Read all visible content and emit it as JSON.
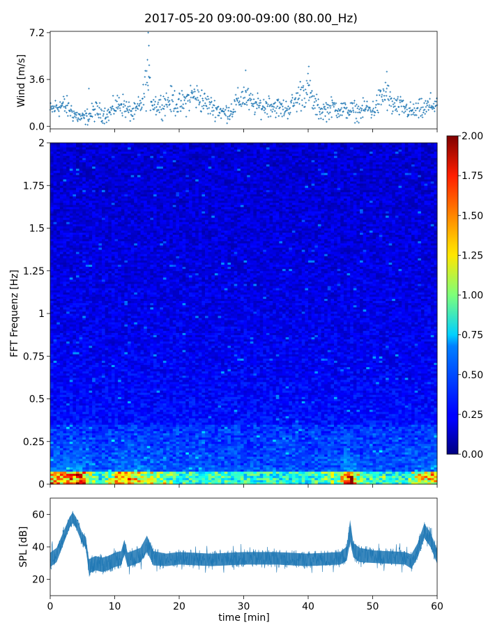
{
  "title": "2017-05-20 09:00-09:00 (80.00_Hz)",
  "chart_data": [
    {
      "type": "scatter",
      "ylabel": "Wind [m/s]",
      "xlabel": "",
      "xlim": [
        0,
        60
      ],
      "ylim": [
        -0.2,
        7.3
      ],
      "yticks": [
        0.0,
        3.6,
        7.2
      ],
      "ytick_labels": [
        "0.0",
        "3.6",
        "7.2"
      ],
      "xticks": [
        0,
        10,
        20,
        30,
        40,
        50,
        60
      ],
      "marker": "+",
      "color": "#1f77b4",
      "envelope": {
        "x": [
          0,
          1,
          2,
          3,
          4,
          5,
          6,
          7,
          8,
          9,
          10,
          11,
          12,
          13,
          14,
          14.5,
          15,
          15.5,
          16,
          17,
          18,
          19,
          20,
          21,
          22,
          23,
          24,
          25,
          26,
          27,
          28,
          29,
          30,
          31,
          32,
          33,
          34,
          35,
          36,
          37,
          38,
          39,
          40,
          41,
          42,
          43,
          44,
          45,
          46,
          47,
          48,
          49,
          50,
          51,
          52,
          53,
          54,
          55,
          56,
          57,
          58,
          59,
          60
        ],
        "y": [
          1.2,
          1.5,
          1.6,
          1.3,
          0.8,
          0.6,
          0.8,
          1.2,
          1.0,
          0.9,
          1.5,
          1.8,
          1.2,
          1.0,
          1.6,
          2.2,
          3.8,
          2.6,
          1.8,
          1.6,
          1.9,
          2.0,
          1.6,
          1.9,
          2.4,
          2.2,
          1.8,
          1.5,
          1.3,
          1.0,
          1.2,
          1.8,
          2.4,
          1.8,
          1.6,
          1.5,
          1.7,
          1.5,
          1.3,
          1.4,
          1.9,
          2.6,
          2.8,
          1.6,
          1.2,
          1.3,
          1.5,
          1.3,
          1.2,
          1.2,
          1.1,
          1.4,
          1.2,
          1.9,
          2.6,
          1.6,
          1.5,
          1.4,
          1.1,
          1.2,
          1.3,
          1.6,
          1.8
        ],
        "spread": [
          0.5,
          0.6,
          0.7,
          0.6,
          0.5,
          0.4,
          0.5,
          0.6,
          0.5,
          0.5,
          0.6,
          0.7,
          0.6,
          0.5,
          0.7,
          0.9,
          1.6,
          1.0,
          0.8,
          0.7,
          0.7,
          0.8,
          0.7,
          0.8,
          0.9,
          0.8,
          0.7,
          0.6,
          0.6,
          0.5,
          0.6,
          0.7,
          0.9,
          0.7,
          0.6,
          0.6,
          0.7,
          0.6,
          0.6,
          0.6,
          0.7,
          1.0,
          1.0,
          0.7,
          0.6,
          0.6,
          0.6,
          0.6,
          0.5,
          0.6,
          0.5,
          0.6,
          0.6,
          0.8,
          1.0,
          0.7,
          0.6,
          0.6,
          0.5,
          0.6,
          0.6,
          0.7,
          0.7
        ]
      },
      "peaks": [
        {
          "x": 15.2,
          "y": 7.2
        },
        {
          "x": 15.3,
          "y": 6.2
        },
        {
          "x": 40.1,
          "y": 4.6
        },
        {
          "x": 52.2,
          "y": 4.2
        },
        {
          "x": 30.3,
          "y": 4.3
        },
        {
          "x": 6.0,
          "y": 2.9
        }
      ]
    },
    {
      "type": "heatmap",
      "ylabel": "FFT Frequenz [Hz]",
      "xlabel": "",
      "xlim": [
        0,
        60
      ],
      "ylim": [
        0,
        2
      ],
      "yticks": [
        0,
        0.25,
        0.5,
        0.75,
        1,
        1.25,
        1.5,
        1.75,
        2
      ],
      "ytick_labels": [
        "0",
        "0.25",
        "0.5",
        "0.75",
        "1",
        "1.25",
        "1.5",
        "1.75",
        "2"
      ],
      "xticks": [
        0,
        10,
        20,
        30,
        40,
        50,
        60
      ],
      "colormap": "jet",
      "clim": [
        0.0,
        2.0
      ],
      "colorbar_ticks": [
        0.0,
        0.25,
        0.5,
        0.75,
        1.0,
        1.25,
        1.5,
        1.75,
        2.0
      ],
      "colorbar_tick_labels": [
        "0.00",
        "0.25",
        "0.50",
        "0.75",
        "1.00",
        "1.25",
        "1.50",
        "1.75",
        "2.00"
      ],
      "time_profile": {
        "x": [
          0,
          2,
          4,
          5,
          6,
          8,
          10,
          12,
          14,
          16,
          18,
          20,
          25,
          30,
          35,
          40,
          45,
          46,
          47,
          48,
          50,
          55,
          57,
          58,
          60
        ],
        "low_freq_level": [
          1.6,
          1.7,
          1.9,
          2.0,
          1.4,
          0.9,
          1.6,
          1.8,
          1.5,
          1.4,
          1.2,
          1.0,
          1.1,
          1.0,
          1.0,
          1.0,
          1.3,
          2.0,
          2.0,
          1.2,
          1.0,
          1.0,
          1.5,
          1.6,
          1.6
        ]
      }
    },
    {
      "type": "line",
      "ylabel": "SPL [dB]",
      "xlabel": "time [min]",
      "xlim": [
        0,
        60
      ],
      "ylim": [
        10,
        70
      ],
      "yticks": [
        20,
        40,
        60
      ],
      "ytick_labels": [
        "20",
        "40",
        "60"
      ],
      "xticks": [
        0,
        10,
        20,
        30,
        40,
        50,
        60
      ],
      "xtick_labels": [
        "0",
        "10",
        "20",
        "30",
        "40",
        "50",
        "60"
      ],
      "color": "#1f77b4",
      "envelope": {
        "x": [
          0,
          1,
          2,
          3,
          3.5,
          4,
          5,
          5.5,
          6,
          7,
          8,
          9,
          10,
          11,
          11.5,
          12,
          14,
          15,
          16,
          18,
          20,
          25,
          30,
          35,
          40,
          45,
          46,
          46.5,
          47,
          48,
          50,
          55,
          56,
          57,
          58,
          59,
          60
        ],
        "mean": [
          32,
          35,
          45,
          55,
          58,
          55,
          45,
          43,
          28,
          30,
          29,
          30,
          32,
          33,
          40,
          32,
          35,
          42,
          33,
          32,
          33,
          32,
          33,
          33,
          32,
          33,
          36,
          50,
          38,
          35,
          34,
          33,
          31,
          38,
          50,
          44,
          34
        ],
        "spread": [
          8,
          8,
          7,
          6,
          6,
          6,
          6,
          6,
          8,
          8,
          8,
          8,
          8,
          8,
          8,
          8,
          8,
          9,
          8,
          7,
          7,
          7,
          7,
          7,
          7,
          7,
          8,
          12,
          8,
          8,
          7,
          7,
          8,
          8,
          8,
          8,
          8
        ]
      }
    }
  ]
}
